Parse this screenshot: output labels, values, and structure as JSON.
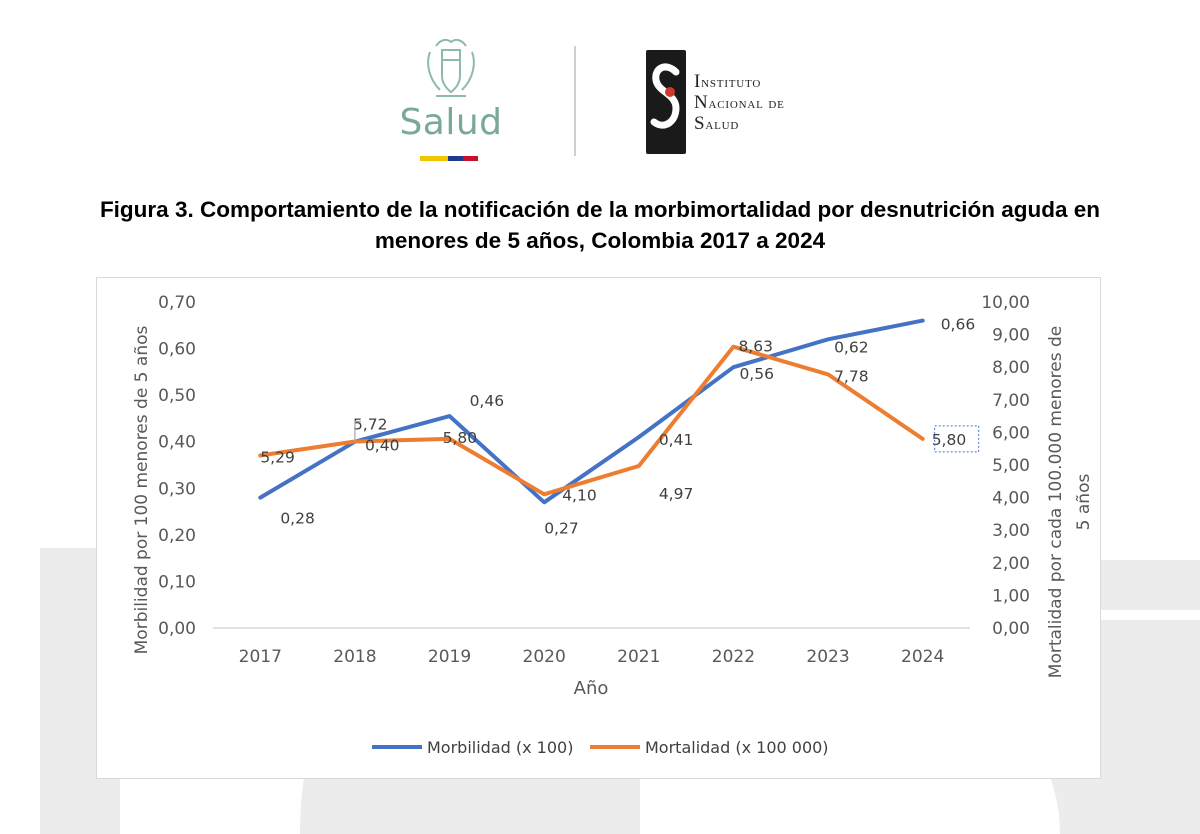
{
  "header": {
    "salud_logo_text": "Salud",
    "salud_flag_colors": [
      "#f2c500",
      "#1f3a8a",
      "#c8102e"
    ],
    "ins_lines": [
      "Instituto",
      "Nacional de",
      "Salud"
    ],
    "ins_logo_color": "#1a1a1a",
    "ins_logo_accent": "#d0382b"
  },
  "figure_title_line1": "Figura 3. Comportamiento de la notificación de la morbimortalidad por desnutrición aguda en",
  "figure_title_line2": "menores de 5 años, Colombia 2017 a 2024",
  "chart_data": {
    "type": "line",
    "title": "",
    "categories": [
      "2017",
      "2018",
      "2019",
      "2020",
      "2021",
      "2022",
      "2023",
      "2024"
    ],
    "xlabel": "Año",
    "ylabel_left": "Morbilidad por 100 menores de 5 años",
    "ylabel_right_line1": "Mortalidad por cada 100.000 menores de",
    "ylabel_right_line2": "5 años",
    "ylim_left": [
      0,
      0.7
    ],
    "ylim_right": [
      0,
      10
    ],
    "left_ticks": [
      "0,00",
      "0,10",
      "0,20",
      "0,30",
      "0,40",
      "0,50",
      "0,60",
      "0,70"
    ],
    "right_ticks": [
      "0,00",
      "1,00",
      "2,00",
      "3,00",
      "4,00",
      "5,00",
      "6,00",
      "7,00",
      "8,00",
      "9,00",
      "10,00"
    ],
    "series": [
      {
        "name": "Morbilidad (x 100)",
        "axis": "left",
        "color": "#4472c4",
        "values": [
          0.28,
          0.4,
          0.455,
          0.27,
          0.41,
          0.56,
          0.62,
          0.66
        ],
        "labels": [
          "0,28",
          "0,40",
          "0,46",
          "0,27",
          "0,41",
          "0,56",
          "0,62",
          "0,66"
        ]
      },
      {
        "name": "Mortalidad (x 100 000)",
        "axis": "right",
        "color": "#ed7d31",
        "values": [
          5.29,
          5.72,
          5.8,
          4.1,
          4.97,
          8.63,
          7.78,
          5.8
        ],
        "labels": [
          "5,29",
          "5,72",
          "5,80",
          "4,10",
          "4,97",
          "8,63",
          "7,78",
          "5,80"
        ]
      }
    ],
    "grid": false,
    "legend_position": "bottom"
  }
}
